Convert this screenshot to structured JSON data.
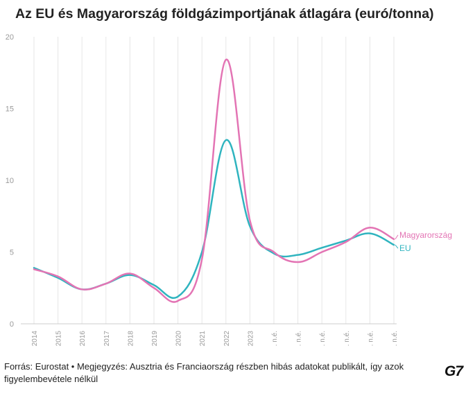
{
  "title": "Az EU és Magyarország földgázimportjának átlagára (euró/tonna)",
  "footer": {
    "source": "Forrás: Eurostat • Megjegyzés: Ausztria és Franciaország részben hibás adatokat publikált, így azok figyelembevétele nélkül",
    "logo": "G7"
  },
  "colors": {
    "magyarorszag": "#e374b4",
    "eu": "#2fb4bf",
    "grid": "#e6e6e6",
    "tick": "#999999"
  },
  "chart_data": {
    "type": "line",
    "title": "Az EU és Magyarország földgázimportjának átlagára (euró/tonna)",
    "xlabel": "",
    "ylabel": "",
    "ylim": [
      0,
      20
    ],
    "yticks": [
      0,
      5,
      10,
      15,
      20
    ],
    "grid": "vertical",
    "legend": "direct labels at line ends",
    "categories": [
      "2014",
      "2015",
      "2016",
      "2017",
      "2018",
      "2019",
      "2020",
      "2021",
      "2022",
      "2023",
      ". n.é.",
      ". n.é.",
      ". n.é.",
      ". n.é.",
      ". n.é.",
      ". n.é."
    ],
    "series": [
      {
        "name": "Magyarország",
        "color": "#e374b4",
        "values": [
          3.8,
          3.3,
          2.4,
          2.8,
          3.5,
          2.5,
          1.6,
          4.5,
          18.4,
          7.2,
          5.0,
          4.3,
          5.0,
          5.7,
          6.7,
          5.9
        ]
      },
      {
        "name": "EU",
        "color": "#2fb4bf",
        "values": [
          3.9,
          3.2,
          2.4,
          2.8,
          3.4,
          2.7,
          1.9,
          5.0,
          12.8,
          6.8,
          4.9,
          4.8,
          5.3,
          5.8,
          6.3,
          5.5
        ]
      }
    ]
  }
}
